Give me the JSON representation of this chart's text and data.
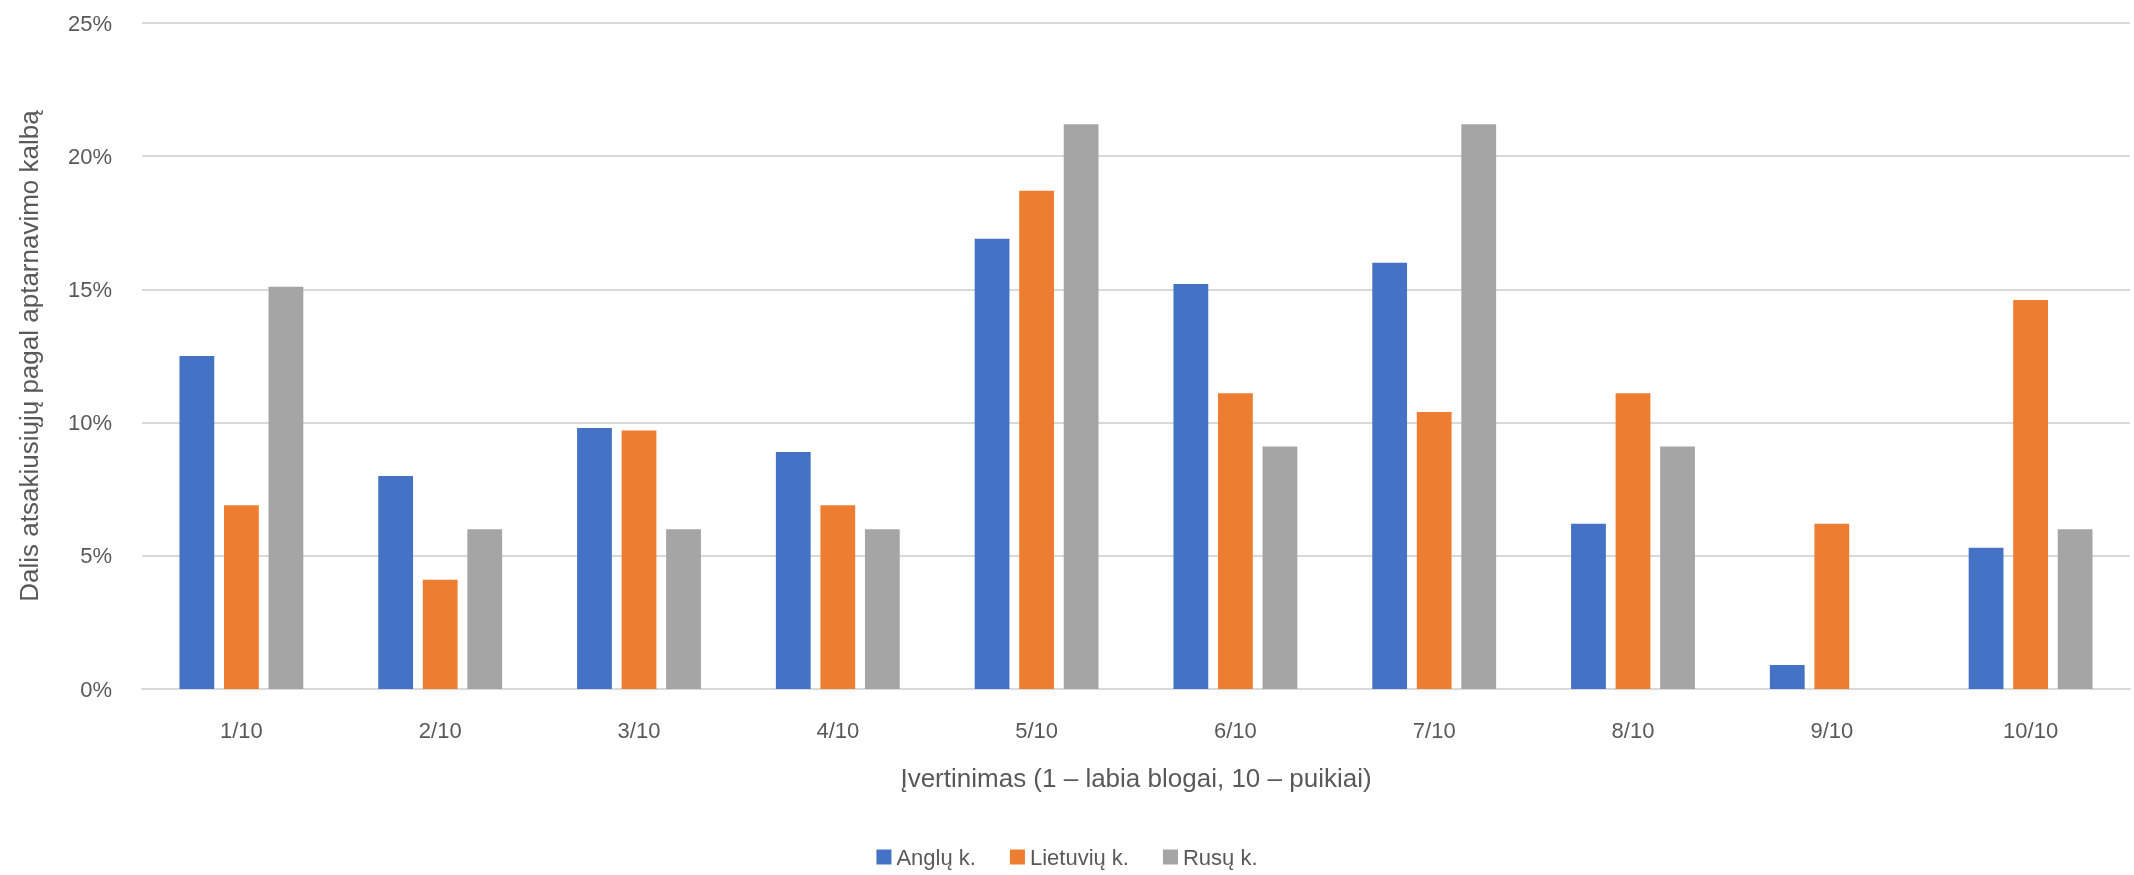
{
  "chart_data": {
    "type": "bar",
    "xlabel": "Įvertinimas (1 – labia blogai, 10 – puikiai)",
    "ylabel": "Dalis atsakiusiųjų pagal aptarnavimo kalbą",
    "categories": [
      "1/10",
      "2/10",
      "3/10",
      "4/10",
      "5/10",
      "6/10",
      "7/10",
      "8/10",
      "9/10",
      "10/10"
    ],
    "series": [
      {
        "name": "Anglų k.",
        "color": "#4472c4",
        "values": [
          12.5,
          8.0,
          9.8,
          8.9,
          16.9,
          15.2,
          16.0,
          6.2,
          0.9,
          5.3
        ]
      },
      {
        "name": "Lietuvių k.",
        "color": "#ed7d31",
        "values": [
          6.9,
          4.1,
          9.7,
          6.9,
          18.7,
          11.1,
          10.4,
          11.1,
          6.2,
          14.6
        ]
      },
      {
        "name": "Rusų k.",
        "color": "#a5a5a5",
        "values": [
          15.1,
          6.0,
          6.0,
          6.0,
          21.2,
          9.1,
          21.2,
          9.1,
          null,
          6.0
        ]
      }
    ],
    "ylim": [
      0,
      25
    ],
    "yticks": [
      {
        "value": 0,
        "label": "0%"
      },
      {
        "value": 5,
        "label": "5%"
      },
      {
        "value": 10,
        "label": "10%"
      },
      {
        "value": 15,
        "label": "15%"
      },
      {
        "value": 20,
        "label": "20%"
      },
      {
        "value": 25,
        "label": "25%"
      }
    ],
    "grid": "y",
    "legend": "bottom"
  }
}
